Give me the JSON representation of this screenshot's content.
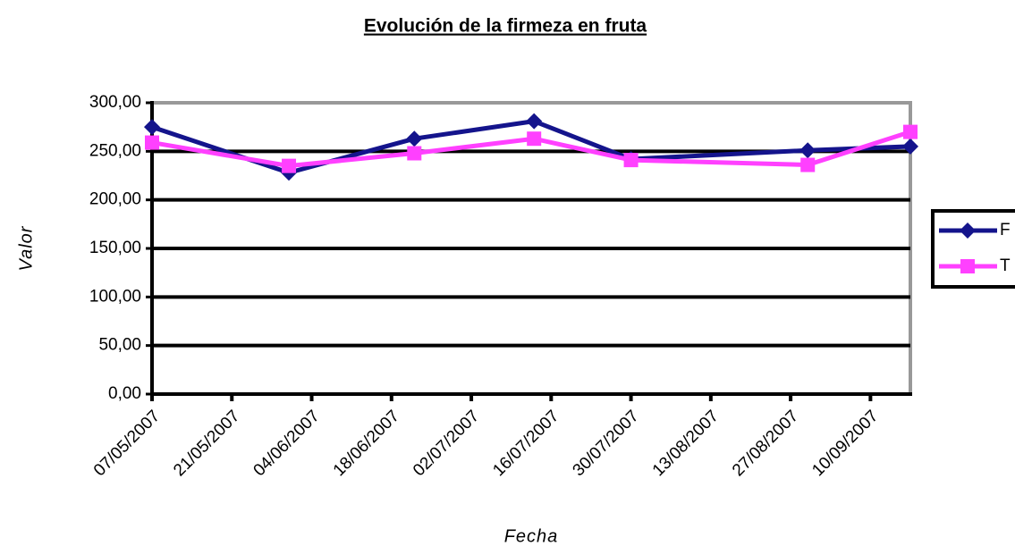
{
  "chart_data": {
    "type": "line",
    "title": "Evolución de la firmeza en fruta",
    "x_label": "Fecha",
    "y_label": "Valor",
    "x": [
      "2007-05-07",
      "2007-05-31",
      "2007-06-22",
      "2007-07-13",
      "2007-07-30",
      "2007-08-30",
      "2007-09-17"
    ],
    "series": [
      {
        "name": "F",
        "color": "#14148c",
        "marker": "diamond",
        "values": [
          275,
          228,
          263,
          281,
          242,
          251,
          255
        ]
      },
      {
        "name": "T",
        "color": "#ff40ff",
        "marker": "square",
        "values": [
          259,
          235,
          248,
          263,
          241,
          236,
          270
        ]
      }
    ],
    "xlim": [
      "2007-05-07",
      "2007-09-17"
    ],
    "xticks": [
      {
        "value": "2007-05-07",
        "label": "07/05/2007"
      },
      {
        "value": "2007-05-21",
        "label": "21/05/2007"
      },
      {
        "value": "2007-06-04",
        "label": "04/06/2007"
      },
      {
        "value": "2007-06-18",
        "label": "18/06/2007"
      },
      {
        "value": "2007-07-02",
        "label": "02/07/2007"
      },
      {
        "value": "2007-07-16",
        "label": "16/07/2007"
      },
      {
        "value": "2007-07-30",
        "label": "30/07/2007"
      },
      {
        "value": "2007-08-13",
        "label": "13/08/2007"
      },
      {
        "value": "2007-08-27",
        "label": "27/08/2007"
      },
      {
        "value": "2007-09-10",
        "label": "10/09/2007"
      }
    ],
    "ylim": [
      0,
      300
    ],
    "yticks": [
      {
        "value": 0,
        "label": "0,00"
      },
      {
        "value": 50,
        "label": "50,00"
      },
      {
        "value": 100,
        "label": "100,00"
      },
      {
        "value": 150,
        "label": "150,00"
      },
      {
        "value": 200,
        "label": "200,00"
      },
      {
        "value": 250,
        "label": "250,00"
      },
      {
        "value": 300,
        "label": "300,00"
      }
    ],
    "grid": true,
    "legend": "right"
  }
}
